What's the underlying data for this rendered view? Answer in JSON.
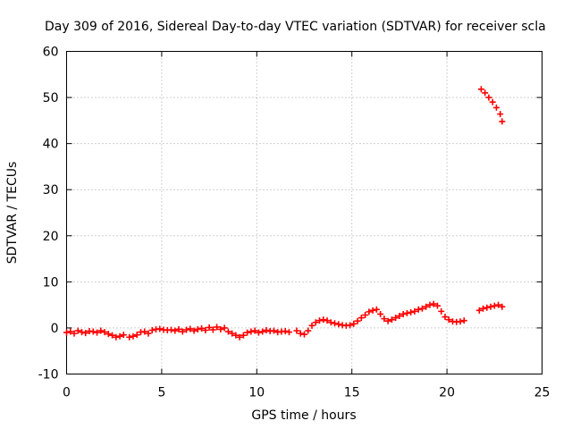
{
  "chart_data": {
    "type": "scatter",
    "title": "Day 309 of 2016, Sidereal Day-to-day VTEC variation (SDTVAR) for receiver scla",
    "xlabel": "GPS time / hours",
    "ylabel": "SDTVAR / TECUs",
    "xlim": [
      0,
      25
    ],
    "ylim": [
      -10,
      60
    ],
    "xticks": [
      "0",
      "5",
      "10",
      "15",
      "20",
      "25"
    ],
    "yticks": [
      "-10",
      "0",
      "10",
      "20",
      "30",
      "40",
      "50",
      "60"
    ],
    "grid": true,
    "marker": "plus",
    "color": "#ff0000",
    "series": [
      {
        "name": "SDTVAR",
        "x": [
          0.0,
          0.2,
          0.4,
          0.6,
          0.8,
          1.0,
          1.2,
          1.4,
          1.6,
          1.8,
          2.0,
          2.2,
          2.4,
          2.6,
          2.8,
          3.0,
          3.3,
          3.5,
          3.7,
          3.9,
          4.1,
          4.3,
          4.5,
          4.7,
          4.9,
          5.1,
          5.3,
          5.5,
          5.7,
          5.9,
          6.1,
          6.3,
          6.5,
          6.7,
          6.9,
          7.1,
          7.3,
          7.5,
          7.7,
          7.9,
          8.1,
          8.3,
          8.5,
          8.7,
          8.9,
          9.1,
          9.3,
          9.5,
          9.7,
          9.9,
          10.1,
          10.3,
          10.5,
          10.7,
          10.9,
          11.1,
          11.3,
          11.5,
          11.7,
          12.1,
          12.3,
          12.5,
          12.7,
          12.9,
          13.1,
          13.3,
          13.5,
          13.7,
          13.9,
          14.1,
          14.3,
          14.5,
          14.7,
          14.9,
          15.1,
          15.3,
          15.5,
          15.7,
          15.9,
          16.1,
          16.3,
          16.5,
          16.7,
          16.9,
          17.1,
          17.3,
          17.5,
          17.7,
          17.9,
          18.1,
          18.3,
          18.5,
          18.7,
          18.9,
          19.1,
          19.3,
          19.5,
          19.7,
          19.9,
          20.1,
          20.3,
          20.5,
          20.7,
          20.9,
          21.7,
          21.9,
          22.1,
          22.3,
          22.5,
          22.7,
          22.9,
          21.8,
          22.0,
          22.2,
          22.4,
          22.6,
          22.8,
          22.9
        ],
        "y": [
          -1.0,
          -0.8,
          -1.2,
          -0.6,
          -0.9,
          -1.1,
          -0.7,
          -0.8,
          -1.0,
          -0.6,
          -0.9,
          -1.3,
          -1.6,
          -2.0,
          -1.8,
          -1.5,
          -2.0,
          -1.8,
          -1.5,
          -0.9,
          -0.8,
          -1.2,
          -0.5,
          -0.3,
          -0.2,
          -0.4,
          -0.5,
          -0.4,
          -0.6,
          -0.3,
          -0.8,
          -0.4,
          -0.2,
          -0.6,
          -0.3,
          -0.1,
          -0.5,
          0.1,
          -0.4,
          0.2,
          -0.3,
          0.0,
          -0.8,
          -1.2,
          -1.6,
          -2.0,
          -1.6,
          -1.0,
          -0.8,
          -0.6,
          -1.0,
          -0.8,
          -0.5,
          -0.7,
          -0.6,
          -0.9,
          -0.8,
          -0.7,
          -0.9,
          -0.6,
          -1.2,
          -1.4,
          -0.6,
          0.5,
          1.2,
          1.6,
          1.8,
          1.6,
          1.2,
          1.0,
          0.8,
          0.6,
          0.5,
          0.6,
          0.9,
          1.5,
          2.2,
          2.8,
          3.5,
          3.8,
          4.0,
          3.0,
          2.0,
          1.5,
          1.8,
          2.2,
          2.6,
          3.0,
          3.2,
          3.4,
          3.6,
          4.0,
          4.2,
          4.6,
          5.0,
          5.2,
          4.8,
          3.6,
          2.4,
          1.8,
          1.4,
          1.3,
          1.4,
          1.6,
          3.8,
          4.2,
          4.4,
          4.6,
          4.8,
          5.0,
          4.6,
          51.8,
          51.0,
          50.0,
          49.0,
          47.8,
          46.4,
          44.8
        ]
      }
    ]
  }
}
